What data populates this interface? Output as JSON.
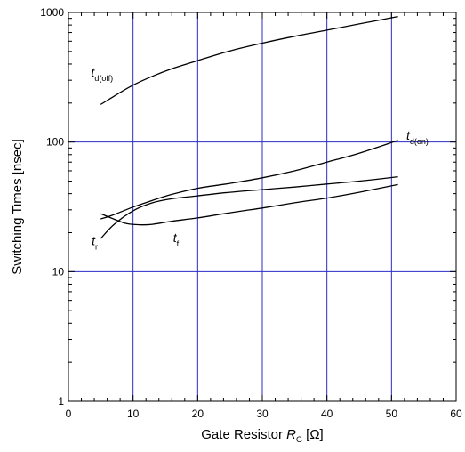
{
  "chart_data": {
    "type": "line",
    "title": "",
    "xlabel": {
      "prefix": "Gate Resistor ",
      "symbol": "R",
      "subscript": "G",
      "unit": " [Ω]"
    },
    "ylabel": "Switching Times [nsec]",
    "xlim": [
      0,
      60
    ],
    "ylim": [
      1,
      1000
    ],
    "yscale": "log",
    "x_ticks": [
      "0",
      "10",
      "20",
      "30",
      "40",
      "50",
      "60"
    ],
    "y_ticks": [
      "1",
      "10",
      "100",
      "1000"
    ],
    "grid_x": [
      10,
      20,
      30,
      40,
      50
    ],
    "grid_y": [
      10,
      100
    ],
    "grid_color": "#2b2bc8",
    "series": [
      {
        "name": {
          "symbol": "t",
          "subscript": "d(off)"
        },
        "label_at": {
          "x": 3.5,
          "y": 320
        },
        "x": [
          5,
          7,
          10,
          13,
          16,
          20,
          25,
          30,
          35,
          40,
          45,
          51
        ],
        "y": [
          195,
          225,
          275,
          322,
          368,
          425,
          505,
          580,
          655,
          730,
          815,
          930
        ]
      },
      {
        "name": {
          "symbol": "t",
          "subscript": "d(on)"
        },
        "label_at": {
          "x": 52.3,
          "y": 104
        },
        "x": [
          5,
          7,
          10,
          13,
          16,
          20,
          25,
          30,
          35,
          40,
          45,
          51
        ],
        "y": [
          25.5,
          27.5,
          31.5,
          35.5,
          39.5,
          44,
          48,
          53,
          60,
          70,
          82,
          103
        ]
      },
      {
        "name": {
          "symbol": "t",
          "subscript": "r"
        },
        "label_at": {
          "x": 3.6,
          "y": 16
        },
        "x": [
          5,
          7,
          10,
          13,
          16,
          20,
          25,
          30,
          35,
          40,
          45,
          51
        ],
        "y": [
          18,
          23,
          29.5,
          34,
          36.5,
          38.5,
          41,
          43,
          45,
          47.5,
          50,
          54
        ]
      },
      {
        "name": {
          "symbol": "t",
          "subscript": "f"
        },
        "label_at": {
          "x": 16.2,
          "y": 17
        },
        "x": [
          5,
          7,
          9,
          11,
          13,
          16,
          20,
          25,
          30,
          35,
          40,
          45,
          51
        ],
        "y": [
          28,
          25.5,
          23.5,
          23,
          23.2,
          24.5,
          26,
          28.5,
          31,
          34,
          37,
          41,
          47
        ]
      }
    ]
  }
}
